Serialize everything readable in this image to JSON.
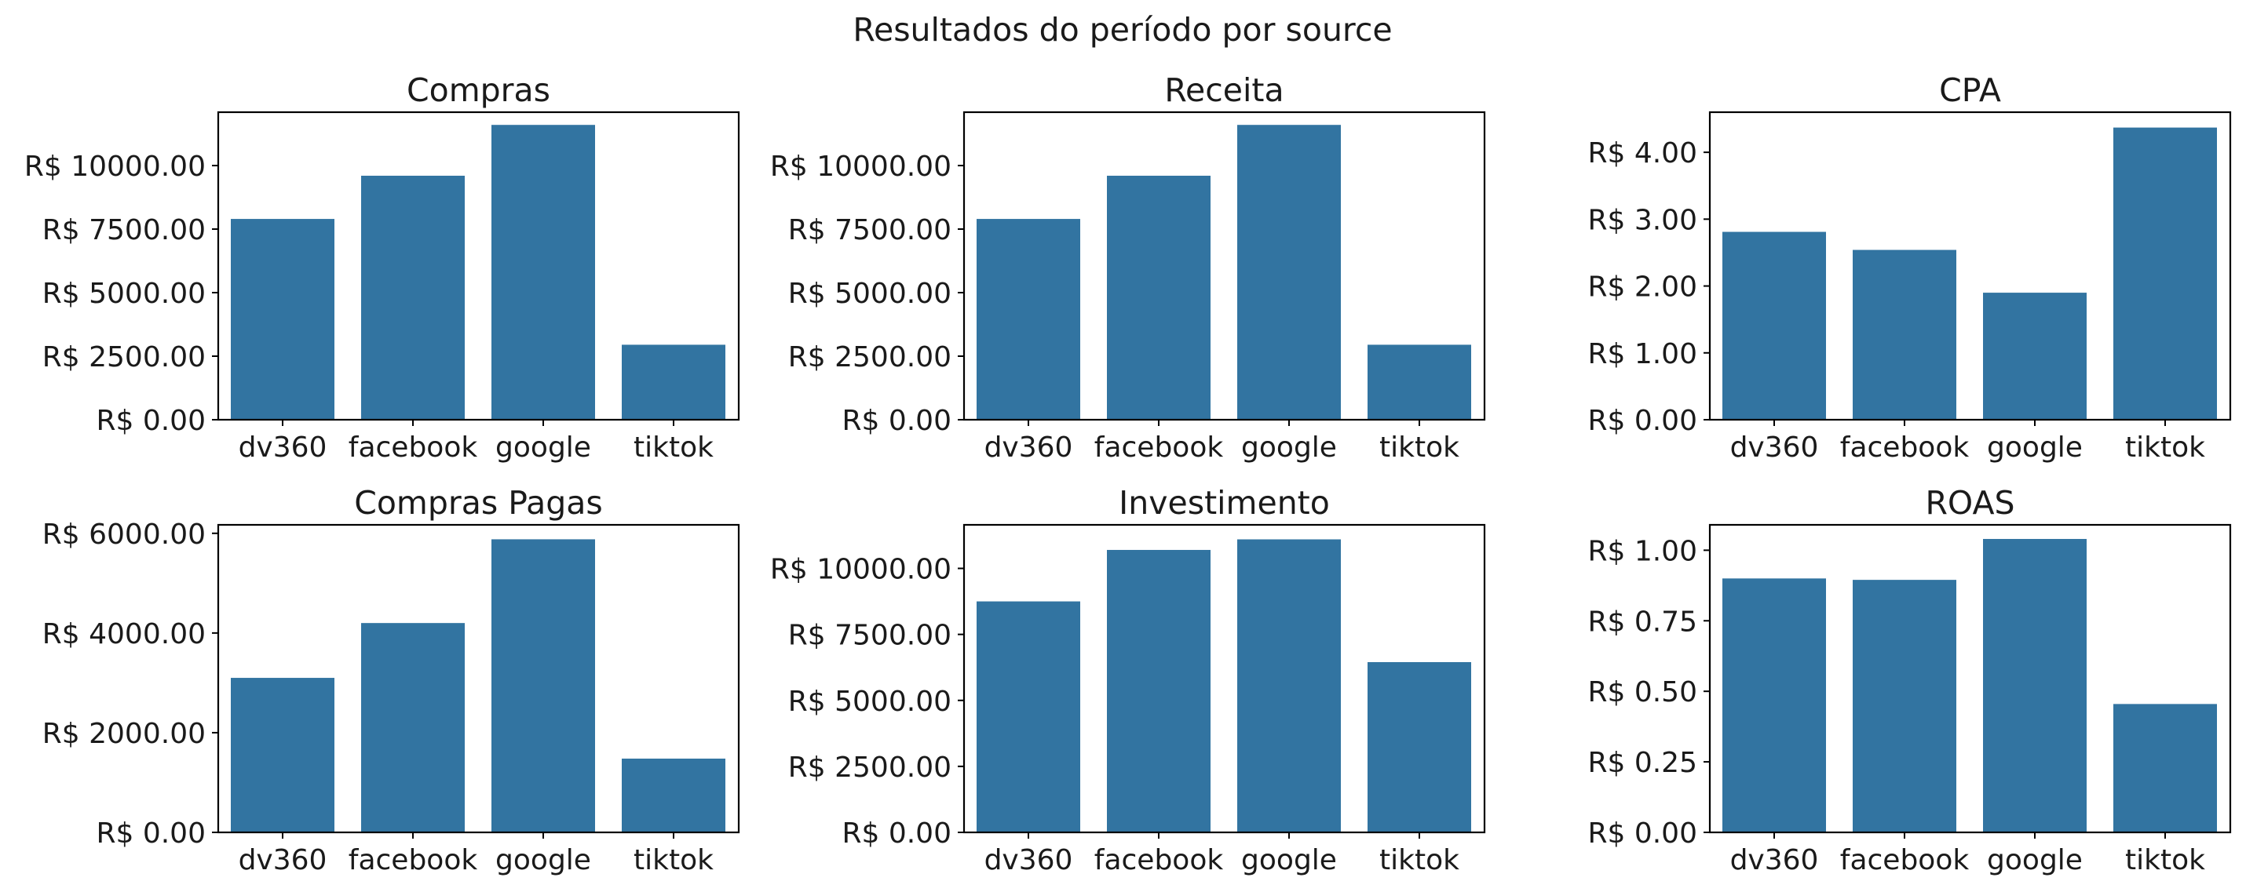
{
  "figure": {
    "title": "Resultados do período por source"
  },
  "chart_data": [
    {
      "type": "bar",
      "title": "Compras",
      "categories": [
        "dv360",
        "facebook",
        "google",
        "tiktok"
      ],
      "values": [
        7900,
        9600,
        11600,
        2950
      ],
      "ylim": [
        0,
        12100
      ],
      "yticks": [
        0,
        2500,
        5000,
        7500,
        10000
      ],
      "ytick_labels": [
        "R$ 0.00",
        "R$ 2500.00",
        "R$ 5000.00",
        "R$ 7500.00",
        "R$ 10000.00"
      ],
      "xlabel": "",
      "ylabel": "",
      "grid": false,
      "color": "#3274a1"
    },
    {
      "type": "bar",
      "title": "Receita",
      "categories": [
        "dv360",
        "facebook",
        "google",
        "tiktok"
      ],
      "values": [
        7900,
        9600,
        11600,
        2950
      ],
      "ylim": [
        0,
        12100
      ],
      "yticks": [
        0,
        2500,
        5000,
        7500,
        10000
      ],
      "ytick_labels": [
        "R$ 0.00",
        "R$ 2500.00",
        "R$ 5000.00",
        "R$ 7500.00",
        "R$ 10000.00"
      ],
      "xlabel": "",
      "ylabel": "",
      "grid": false,
      "color": "#3274a1"
    },
    {
      "type": "bar",
      "title": "CPA",
      "categories": [
        "dv360",
        "facebook",
        "google",
        "tiktok"
      ],
      "values": [
        2.81,
        2.54,
        1.9,
        4.37
      ],
      "ylim": [
        0,
        4.6
      ],
      "yticks": [
        0,
        1,
        2,
        3,
        4
      ],
      "ytick_labels": [
        "R$ 0.00",
        "R$ 1.00",
        "R$ 2.00",
        "R$ 3.00",
        "R$ 4.00"
      ],
      "xlabel": "",
      "ylabel": "",
      "grid": false,
      "color": "#3274a1"
    },
    {
      "type": "bar",
      "title": "Compras Pagas",
      "categories": [
        "dv360",
        "facebook",
        "google",
        "tiktok"
      ],
      "values": [
        3100,
        4200,
        5880,
        1480
      ],
      "ylim": [
        0,
        6170
      ],
      "yticks": [
        0,
        2000,
        4000,
        6000
      ],
      "ytick_labels": [
        "R$ 0.00",
        "R$ 2000.00",
        "R$ 4000.00",
        "R$ 6000.00"
      ],
      "xlabel": "",
      "ylabel": "",
      "grid": false,
      "color": "#3274a1"
    },
    {
      "type": "bar",
      "title": "Investimento",
      "categories": [
        "dv360",
        "facebook",
        "google",
        "tiktok"
      ],
      "values": [
        8750,
        10700,
        11100,
        6450
      ],
      "ylim": [
        0,
        11650
      ],
      "yticks": [
        0,
        2500,
        5000,
        7500,
        10000
      ],
      "ytick_labels": [
        "R$ 0.00",
        "R$ 2500.00",
        "R$ 5000.00",
        "R$ 7500.00",
        "R$ 10000.00"
      ],
      "xlabel": "",
      "ylabel": "",
      "grid": false,
      "color": "#3274a1"
    },
    {
      "type": "bar",
      "title": "ROAS",
      "categories": [
        "dv360",
        "facebook",
        "google",
        "tiktok"
      ],
      "values": [
        0.9,
        0.895,
        1.04,
        0.455
      ],
      "ylim": [
        0,
        1.09
      ],
      "yticks": [
        0,
        0.25,
        0.5,
        0.75,
        1.0
      ],
      "ytick_labels": [
        "R$ 0.00",
        "R$ 0.25",
        "R$ 0.50",
        "R$ 0.75",
        "R$ 1.00"
      ],
      "xlabel": "",
      "ylabel": "",
      "grid": false,
      "color": "#3274a1"
    }
  ]
}
